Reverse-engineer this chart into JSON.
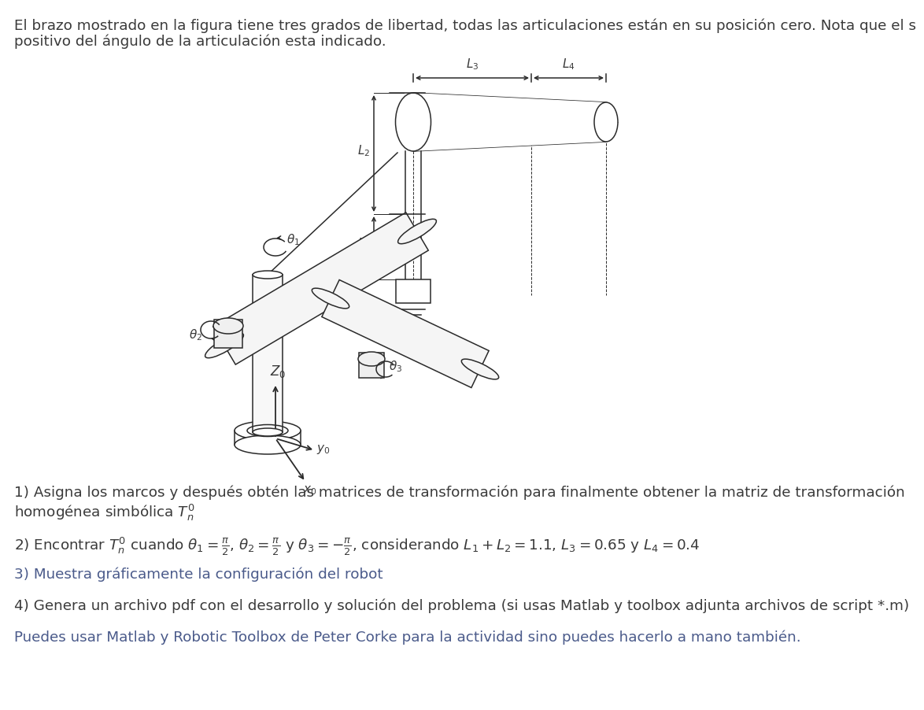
{
  "bg_color": "#ffffff",
  "text_color": "#3a3a3a",
  "text_color_blue": "#4a5a8a",
  "font_size_body": 13.2,
  "line1": "El brazo mostrado en la figura tiene tres grados de libertad, todas las articulaciones están en su posición cero. Nota que el s",
  "line2": "positivo del ángulo de la articulación esta indicado.",
  "item1_line1": "1) Asigna los marcos y después obtén las matrices de transformación para finalmente obtener la matriz de transformación",
  "item1_line2": "homogénea simbólica $T_n^0$",
  "item2": "2) Encontrar $T_n^0$ cuando $\\theta_1 = \\frac{\\pi}{2}$, $\\theta_2 = \\frac{\\pi}{2}$ y $\\theta_3 = -\\frac{\\pi}{2}$, considerando $L_1 + L_2 = 1.1$, $L_3 = 0.65$ y $L_4 = 0.4$",
  "item3": "3) Muestra gráficamente la configuración del robot",
  "item4": "4) Genera un archivo pdf con el desarrollo y solución del problema (si usas Matlab y toolbox adjunta archivos de script *.m)",
  "item5": "Puedes usar Matlab y Robotic Toolbox de Peter Corke para la actividad sino puedes hacerlo a mano también.",
  "lc": "#2a2a2a",
  "lw": 1.1,
  "lw_thin": 0.7
}
